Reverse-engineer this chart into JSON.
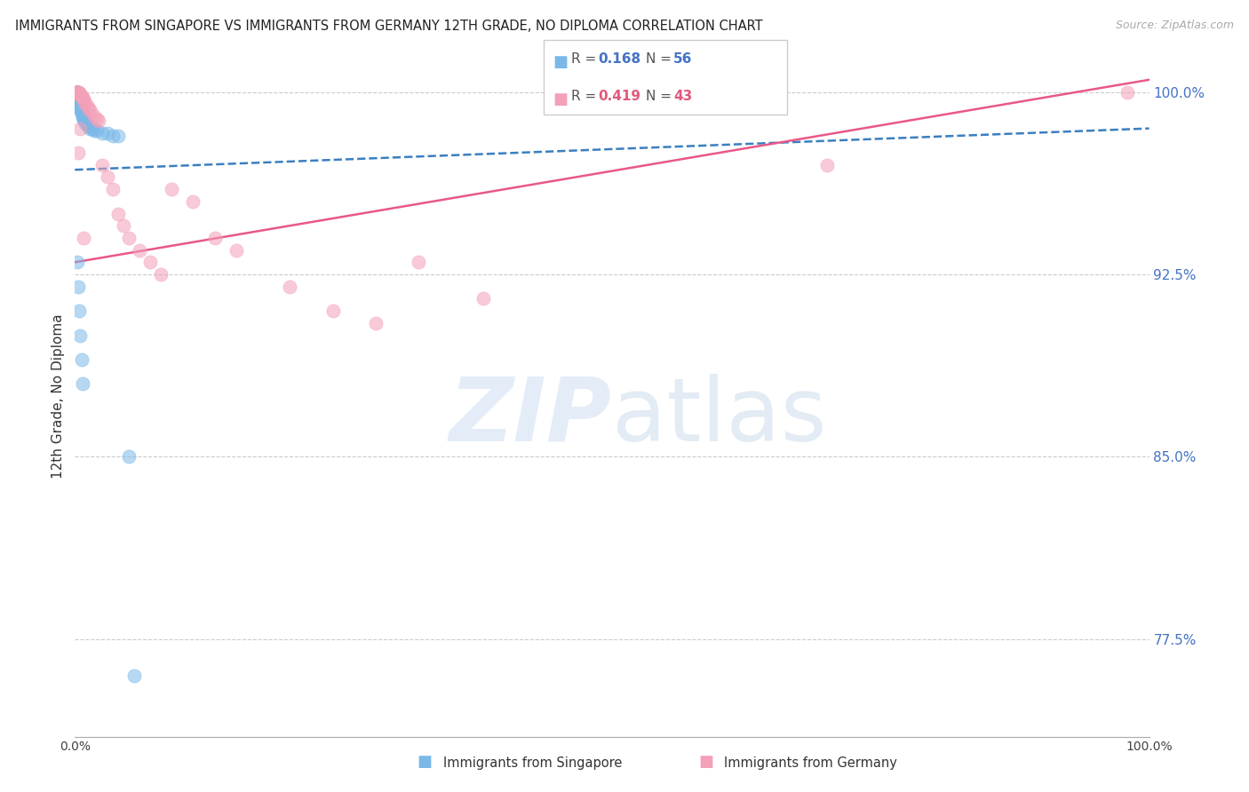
{
  "title": "IMMIGRANTS FROM SINGAPORE VS IMMIGRANTS FROM GERMANY 12TH GRADE, NO DIPLOMA CORRELATION CHART",
  "source": "Source: ZipAtlas.com",
  "ylabel": "12th Grade, No Diploma",
  "singapore_R": 0.168,
  "singapore_N": 56,
  "germany_R": 0.419,
  "germany_N": 43,
  "singapore_color": "#7ab8e8",
  "germany_color": "#f4a0b8",
  "singapore_line_color": "#3a7fc1",
  "germany_line_color": "#e85888",
  "xmin": 0.0,
  "xmax": 1.0,
  "ymin": 0.735,
  "ymax": 1.015,
  "yticks": [
    0.775,
    0.85,
    0.925,
    1.0
  ],
  "ytick_labels": [
    "77.5%",
    "85.0%",
    "92.5%",
    "100.0%"
  ],
  "xticks": [
    0.0,
    0.125,
    0.25,
    0.375,
    0.5,
    0.625,
    0.75,
    0.875,
    1.0
  ],
  "xtick_labels": [
    "0.0%",
    "",
    "",
    "",
    "",
    "",
    "",
    "",
    "100.0%"
  ],
  "watermark_zip": "ZIP",
  "watermark_atlas": "atlas",
  "singapore_x": [
    0.001,
    0.001,
    0.001,
    0.002,
    0.002,
    0.002,
    0.002,
    0.002,
    0.002,
    0.003,
    0.003,
    0.003,
    0.003,
    0.003,
    0.003,
    0.004,
    0.004,
    0.004,
    0.004,
    0.005,
    0.005,
    0.005,
    0.005,
    0.005,
    0.006,
    0.006,
    0.006,
    0.006,
    0.007,
    0.007,
    0.007,
    0.008,
    0.008,
    0.009,
    0.009,
    0.01,
    0.01,
    0.011,
    0.012,
    0.013,
    0.014,
    0.016,
    0.018,
    0.02,
    0.025,
    0.03,
    0.035,
    0.04,
    0.05,
    0.055,
    0.002,
    0.003,
    0.004,
    0.005,
    0.006,
    0.007
  ],
  "singapore_y": [
    1.0,
    1.0,
    1.0,
    1.0,
    1.0,
    1.0,
    1.0,
    1.0,
    0.999,
    0.999,
    0.999,
    0.998,
    0.998,
    0.997,
    0.997,
    0.997,
    0.996,
    0.996,
    0.995,
    0.995,
    0.994,
    0.994,
    0.993,
    0.993,
    0.993,
    0.992,
    0.992,
    0.991,
    0.991,
    0.99,
    0.99,
    0.989,
    0.989,
    0.988,
    0.988,
    0.988,
    0.987,
    0.987,
    0.986,
    0.986,
    0.985,
    0.985,
    0.984,
    0.984,
    0.983,
    0.983,
    0.982,
    0.982,
    0.85,
    0.76,
    0.93,
    0.92,
    0.91,
    0.9,
    0.89,
    0.88
  ],
  "germany_x": [
    0.001,
    0.002,
    0.002,
    0.003,
    0.003,
    0.004,
    0.004,
    0.005,
    0.005,
    0.006,
    0.007,
    0.008,
    0.009,
    0.01,
    0.012,
    0.013,
    0.015,
    0.018,
    0.02,
    0.022,
    0.025,
    0.03,
    0.035,
    0.04,
    0.045,
    0.05,
    0.06,
    0.07,
    0.08,
    0.09,
    0.11,
    0.13,
    0.15,
    0.2,
    0.24,
    0.28,
    0.32,
    0.38,
    0.7,
    0.98,
    0.003,
    0.005,
    0.008
  ],
  "germany_y": [
    1.0,
    1.0,
    1.0,
    1.0,
    1.0,
    1.0,
    0.999,
    0.999,
    0.999,
    0.998,
    0.998,
    0.997,
    0.996,
    0.995,
    0.994,
    0.993,
    0.992,
    0.99,
    0.989,
    0.988,
    0.97,
    0.965,
    0.96,
    0.95,
    0.945,
    0.94,
    0.935,
    0.93,
    0.925,
    0.96,
    0.955,
    0.94,
    0.935,
    0.92,
    0.91,
    0.905,
    0.93,
    0.915,
    0.97,
    1.0,
    0.975,
    0.985,
    0.94
  ]
}
